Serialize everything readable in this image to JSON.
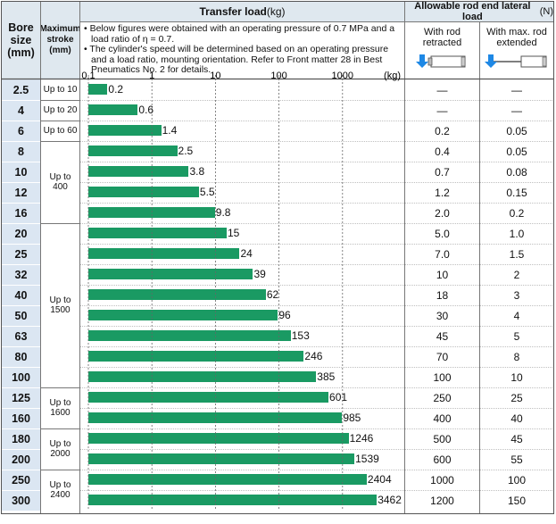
{
  "headers": {
    "bore_line1": "Bore",
    "bore_line2": "size",
    "bore_line3": "(mm)",
    "stroke_line1": "Maximum",
    "stroke_line2": "stroke",
    "stroke_line3": "(mm)",
    "transfer_title": "Transfer load",
    "transfer_unit": " (kg)",
    "lateral_title": "Allowable rod end lateral load",
    "lateral_unit": " (N)",
    "retracted_line1": "With rod",
    "retracted_line2": "retracted",
    "extended_line1": "With max. rod",
    "extended_line2": "extended"
  },
  "notes": [
    "• Below figures were obtained with an operating pressure of 0.7 MPa and a",
    "load ratio of η = 0.7.",
    "• The cylinder's speed will be determined based on an operating pressure",
    "and a load ratio, mounting orientation. Refer to Front matter 28 in Best",
    "Pneumatics No. 2 for details."
  ],
  "colors": {
    "bar": "#1a9a63",
    "header_bg": "#dfe8ef",
    "bore_bg": "#dbe6f2",
    "icon_arrow": "#1e88e5"
  },
  "chart_data": {
    "type": "bar",
    "orientation": "horizontal",
    "xscale": "log",
    "xlim": [
      0.1,
      5000
    ],
    "x_ticks": [
      "0.1",
      "1",
      "10",
      "100",
      "1000"
    ],
    "x_unit": "(kg)",
    "grid": true,
    "categories": [
      "2.5",
      "4",
      "6",
      "8",
      "10",
      "12",
      "16",
      "20",
      "25",
      "32",
      "40",
      "50",
      "63",
      "80",
      "100",
      "125",
      "160",
      "180",
      "200",
      "250",
      "300"
    ],
    "values": [
      0.2,
      0.6,
      1.4,
      2.5,
      3.8,
      5.5,
      9.8,
      15,
      24,
      39,
      62,
      96,
      153,
      246,
      385,
      601,
      985,
      1246,
      1539,
      2404,
      3462
    ],
    "value_labels": [
      "0.2",
      "0.6",
      "1.4",
      "2.5",
      "3.8",
      "5.5",
      "9.8",
      "15",
      "24",
      "39",
      "62",
      "96",
      "153",
      "246",
      "385",
      "601",
      "985",
      "1246",
      "1539",
      "2404",
      "3462"
    ]
  },
  "stroke_groups": [
    {
      "label": "Up to 10",
      "start": 0,
      "end": 0
    },
    {
      "label": "Up to 20",
      "start": 1,
      "end": 1
    },
    {
      "label": "Up to 60",
      "start": 2,
      "end": 2
    },
    {
      "label": "Up to 400",
      "start": 3,
      "end": 6
    },
    {
      "label": "Up to 1500",
      "start": 7,
      "end": 14
    },
    {
      "label": "Up to 1600",
      "start": 15,
      "end": 16
    },
    {
      "label": "Up to 2000",
      "start": 17,
      "end": 18
    },
    {
      "label": "Up to 2400",
      "start": 19,
      "end": 20
    }
  ],
  "lateral_retracted": [
    "—",
    "—",
    "0.2",
    "0.4",
    "0.7",
    "1.2",
    "2.0",
    "5.0",
    "7.0",
    "10",
    "18",
    "30",
    "45",
    "70",
    "100",
    "250",
    "400",
    "500",
    "600",
    "1000",
    "1200"
  ],
  "lateral_extended": [
    "—",
    "—",
    "0.05",
    "0.05",
    "0.08",
    "0.15",
    "0.2",
    "1.0",
    "1.5",
    "2",
    "3",
    "4",
    "5",
    "8",
    "10",
    "25",
    "40",
    "45",
    "55",
    "100",
    "150"
  ]
}
